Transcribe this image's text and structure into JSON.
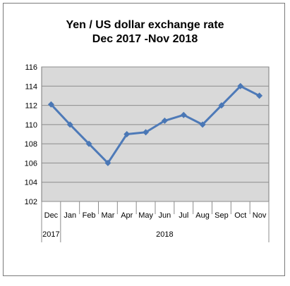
{
  "chart_data": {
    "type": "line",
    "title": "Yen / US dollar exchange rate",
    "subtitle": "Dec 2017 -Nov 2018",
    "xlabel": "",
    "ylabel": "",
    "categories": [
      "Dec",
      "Jan",
      "Feb",
      "Mar",
      "Apr",
      "May",
      "Jun",
      "Jul",
      "Aug",
      "Sep",
      "Oct",
      "Nov"
    ],
    "year_groups": [
      {
        "label": "2017",
        "start": 0,
        "end": 0
      },
      {
        "label": "2018",
        "start": 1,
        "end": 11
      }
    ],
    "series": [
      {
        "values": [
          112.1,
          110.0,
          108.0,
          106.0,
          109.0,
          109.2,
          110.4,
          111.0,
          110.0,
          112.0,
          114.0,
          113.0
        ]
      }
    ],
    "ylim": [
      102,
      116
    ],
    "yticks": [
      102,
      104,
      106,
      108,
      110,
      112,
      114,
      116
    ],
    "grid": true,
    "legend": "none",
    "colors": {
      "line": "#4e7ab8",
      "marker": "#4a77b5",
      "plot_bg": "#d9d9d9",
      "grid": "#8c8c8c",
      "border": "#7a7a7a"
    }
  }
}
